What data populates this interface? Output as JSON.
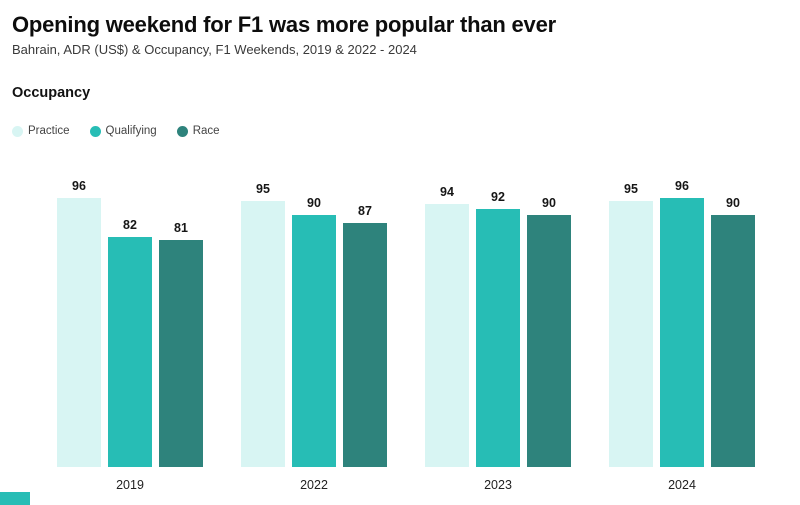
{
  "header": {
    "title": "Opening weekend for F1 was more popular than ever",
    "subtitle": "Bahrain, ADR (US$) & Occupancy, F1 Weekends, 2019 & 2022 - 2024"
  },
  "section": {
    "label": "Occupancy"
  },
  "legend": [
    {
      "label": "Practice",
      "color": "#d8f5f3"
    },
    {
      "label": "Qualifying",
      "color": "#27bdb5"
    },
    {
      "label": "Race",
      "color": "#2e837c"
    }
  ],
  "chart_data": {
    "type": "bar",
    "title": "Occupancy",
    "categories": [
      "2019",
      "2022",
      "2023",
      "2024"
    ],
    "series": [
      {
        "name": "Practice",
        "color": "#d8f5f3",
        "values": [
          96,
          95,
          94,
          95
        ]
      },
      {
        "name": "Qualifying",
        "color": "#27bdb5",
        "values": [
          82,
          90,
          92,
          96
        ]
      },
      {
        "name": "Race",
        "color": "#2e837c",
        "values": [
          81,
          87,
          90,
          90
        ]
      }
    ],
    "xlabel": "",
    "ylabel": "Occupancy",
    "ylim": [
      0,
      100
    ],
    "grid": false,
    "value_labels": true,
    "legend_position": "top-left"
  },
  "footer": {
    "logo_color": "#27bdb5"
  }
}
